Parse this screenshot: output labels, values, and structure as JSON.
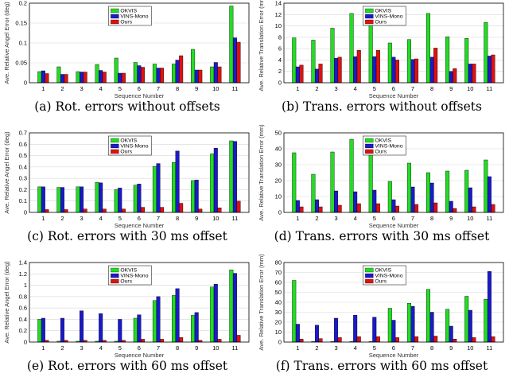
{
  "legend": {
    "series": [
      "OKVIS",
      "VINS-Mono",
      "Ours"
    ],
    "colors": [
      "#22dd22",
      "#1a1acc",
      "#e01010"
    ]
  },
  "chart_data": [
    {
      "type": "bar",
      "caption": "(a) Rot. errors without offsets",
      "xlabel": "Sequence Number",
      "ylabel": "Ave. Relative Angel Error (deg)",
      "ylim": [
        0,
        0.2
      ],
      "yticks": [
        "0",
        "0.05",
        "0.1",
        "0.15",
        "0.2"
      ],
      "categories": [
        "1",
        "2",
        "3",
        "4",
        "5",
        "6",
        "7",
        "8",
        "9",
        "10",
        "11"
      ],
      "series": [
        {
          "name": "OKVIS",
          "values": [
            0.028,
            0.04,
            0.028,
            0.046,
            0.062,
            0.051,
            0.047,
            0.047,
            0.084,
            0.04,
            0.193
          ]
        },
        {
          "name": "VINS-Mono",
          "values": [
            0.03,
            0.021,
            0.027,
            0.031,
            0.024,
            0.043,
            0.037,
            0.057,
            0.032,
            0.051,
            0.113
          ]
        },
        {
          "name": "Ours",
          "values": [
            0.023,
            0.021,
            0.027,
            0.027,
            0.024,
            0.039,
            0.037,
            0.068,
            0.032,
            0.04,
            0.102
          ]
        }
      ]
    },
    {
      "type": "bar",
      "caption": "(b) Trans. errors without offsets",
      "xlabel": "Sequence Number",
      "ylabel": "Ave. Relative Translation Error (mm)",
      "ylim": [
        0,
        14
      ],
      "yticks": [
        "0",
        "2",
        "4",
        "6",
        "8",
        "10",
        "12",
        "14"
      ],
      "categories": [
        "1",
        "2",
        "3",
        "4",
        "5",
        "6",
        "7",
        "8",
        "9",
        "10",
        "11"
      ],
      "series": [
        {
          "name": "OKVIS",
          "values": [
            7.9,
            7.5,
            9.6,
            12.2,
            13.2,
            7.0,
            7.6,
            12.2,
            8.1,
            7.8,
            10.6
          ]
        },
        {
          "name": "VINS-Mono",
          "values": [
            2.8,
            2.4,
            4.3,
            4.6,
            4.6,
            4.5,
            4.1,
            4.5,
            2.0,
            3.3,
            4.7
          ]
        },
        {
          "name": "Ours",
          "values": [
            3.1,
            3.3,
            4.5,
            5.7,
            5.7,
            4.0,
            4.2,
            6.1,
            2.5,
            3.3,
            4.9
          ]
        }
      ]
    },
    {
      "type": "bar",
      "caption": "(c) Rot. errors with 30 ms offset",
      "xlabel": "Sequence Number",
      "ylabel": "Ave. Relative Angel Error (deg)",
      "ylim": [
        0,
        0.7
      ],
      "yticks": [
        "0",
        "0.1",
        "0.2",
        "0.3",
        "0.4",
        "0.5",
        "0.6",
        "0.7"
      ],
      "categories": [
        "1",
        "2",
        "3",
        "4",
        "5",
        "6",
        "7",
        "8",
        "9",
        "10",
        "11"
      ],
      "series": [
        {
          "name": "OKVIS",
          "values": [
            0.225,
            0.22,
            0.225,
            0.265,
            0.2,
            0.24,
            0.405,
            0.44,
            0.28,
            0.515,
            0.63
          ]
        },
        {
          "name": "VINS-Mono",
          "values": [
            0.225,
            0.22,
            0.225,
            0.26,
            0.215,
            0.25,
            0.43,
            0.54,
            0.285,
            0.565,
            0.625
          ]
        },
        {
          "name": "Ours",
          "values": [
            0.025,
            0.025,
            0.03,
            0.03,
            0.03,
            0.045,
            0.045,
            0.08,
            0.03,
            0.04,
            0.1
          ]
        }
      ]
    },
    {
      "type": "bar",
      "caption": "(d) Trans. errors with 30 ms offset",
      "xlabel": "Sequence Number",
      "ylabel": "Ave. Relative Translation Error (mm)",
      "ylim": [
        0,
        50
      ],
      "yticks": [
        "0",
        "10",
        "20",
        "30",
        "40",
        "50"
      ],
      "categories": [
        "1",
        "2",
        "3",
        "4",
        "5",
        "6",
        "7",
        "8",
        "9",
        "10",
        "11"
      ],
      "series": [
        {
          "name": "OKVIS",
          "values": [
            37.5,
            24.0,
            38.0,
            46.0,
            37.0,
            19.5,
            31.0,
            25.0,
            26.0,
            26.5,
            33.0
          ]
        },
        {
          "name": "VINS-Mono",
          "values": [
            7.5,
            8.0,
            13.5,
            13.0,
            14.0,
            8.0,
            16.0,
            18.5,
            7.0,
            15.5,
            22.5
          ]
        },
        {
          "name": "Ours",
          "values": [
            3.5,
            3.5,
            4.5,
            5.5,
            5.5,
            4.0,
            5.0,
            6.0,
            2.5,
            3.5,
            5.0
          ]
        }
      ]
    },
    {
      "type": "bar",
      "caption": "(e) Rot. errors with 60 ms offset",
      "xlabel": "Sequence Number",
      "ylabel": "Ave. Relative Angel Error (deg)",
      "ylim": [
        0,
        1.4
      ],
      "yticks": [
        "0",
        "0.2",
        "0.4",
        "0.6",
        "0.8",
        "1",
        "1.2",
        "1.4"
      ],
      "categories": [
        "1",
        "2",
        "3",
        "4",
        "5",
        "6",
        "7",
        "8",
        "9",
        "10",
        "11"
      ],
      "series": [
        {
          "name": "OKVIS",
          "values": [
            0.4,
            0.015,
            0.015,
            0.015,
            0.015,
            0.42,
            0.73,
            0.82,
            0.47,
            0.97,
            1.27
          ]
        },
        {
          "name": "VINS-Mono",
          "values": [
            0.42,
            0.42,
            0.55,
            0.5,
            0.4,
            0.48,
            0.8,
            0.94,
            0.52,
            1.02,
            1.21
          ]
        },
        {
          "name": "Ours",
          "values": [
            0.03,
            0.03,
            0.03,
            0.03,
            0.03,
            0.05,
            0.05,
            0.08,
            0.03,
            0.05,
            0.12
          ]
        }
      ]
    },
    {
      "type": "bar",
      "caption": "(f) Trans. errors with 60 ms offset",
      "xlabel": "Sequence Number",
      "ylabel": "Ave. Relative Translation Error (mm)",
      "ylim": [
        0,
        80
      ],
      "yticks": [
        "0",
        "10",
        "20",
        "30",
        "40",
        "50",
        "60",
        "70",
        "80"
      ],
      "categories": [
        "1",
        "2",
        "3",
        "4",
        "5",
        "6",
        "7",
        "8",
        "9",
        "10",
        "11"
      ],
      "series": [
        {
          "name": "OKVIS",
          "values": [
            62,
            0.5,
            0.5,
            0.5,
            0.5,
            34,
            39,
            53,
            33,
            46,
            43
          ]
        },
        {
          "name": "VINS-Mono",
          "values": [
            18,
            17,
            24,
            27,
            25,
            22,
            36,
            30,
            16,
            32,
            71
          ]
        },
        {
          "name": "Ours",
          "values": [
            3,
            3.5,
            4.5,
            5.5,
            5.5,
            4.5,
            5.5,
            6,
            3,
            4.5,
            5.5
          ]
        }
      ]
    }
  ]
}
